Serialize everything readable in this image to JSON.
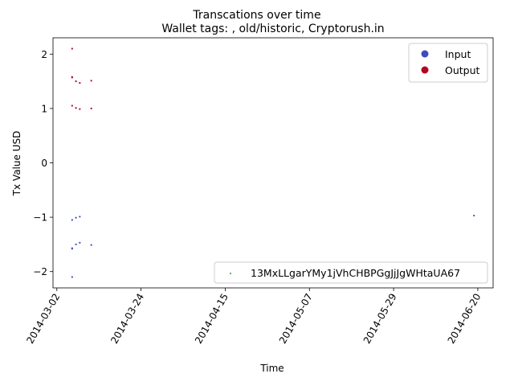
{
  "chart_data": {
    "type": "scatter",
    "title": "Transcations over time",
    "subtitle": "Wallet tags: , old/historic, Cryptorush.in",
    "xlabel": "Time",
    "ylabel": "Tx Value USD",
    "xlim": [
      "2014-03-01",
      "2014-06-24"
    ],
    "ylim": [
      -2.3,
      2.3
    ],
    "x_ticks": [
      "2014-03-02",
      "2014-03-24",
      "2014-04-15",
      "2014-05-07",
      "2014-05-29",
      "2014-06-20"
    ],
    "y_ticks": [
      2,
      1,
      0,
      -1,
      -2
    ],
    "grid": false,
    "series": [
      {
        "name": "Input",
        "color": "#3b4cc0",
        "points": [
          {
            "x": "2014-03-06",
            "y": -1.57
          },
          {
            "x": "2014-03-06",
            "y": -1.58
          },
          {
            "x": "2014-03-06",
            "y": -1.05
          },
          {
            "x": "2014-03-06",
            "y": -2.1
          },
          {
            "x": "2014-03-07",
            "y": -1.5
          },
          {
            "x": "2014-03-07",
            "y": -1.01
          },
          {
            "x": "2014-03-08",
            "y": -1.47
          },
          {
            "x": "2014-03-08",
            "y": -0.99
          },
          {
            "x": "2014-03-11",
            "y": -1.51
          },
          {
            "x": "2014-06-19",
            "y": -0.97
          }
        ]
      },
      {
        "name": "Output",
        "color": "#b40426",
        "points": [
          {
            "x": "2014-03-06",
            "y": 1.57
          },
          {
            "x": "2014-03-06",
            "y": 1.58
          },
          {
            "x": "2014-03-06",
            "y": 1.05
          },
          {
            "x": "2014-03-06",
            "y": 2.1
          },
          {
            "x": "2014-03-07",
            "y": 1.5
          },
          {
            "x": "2014-03-07",
            "y": 1.01
          },
          {
            "x": "2014-03-08",
            "y": 1.47
          },
          {
            "x": "2014-03-08",
            "y": 0.99
          },
          {
            "x": "2014-03-11",
            "y": 1.51
          },
          {
            "x": "2014-03-11",
            "y": 1.0
          }
        ]
      }
    ],
    "legends": [
      {
        "placement": "upper-right",
        "entries": [
          {
            "label": "Input",
            "color": "#3b4cc0",
            "marker": "circle"
          },
          {
            "label": "Output",
            "color": "#b40426",
            "marker": "circle"
          }
        ]
      },
      {
        "placement": "lower-right",
        "entries": [
          {
            "label": "13MxLLgarYMy1jVhCHBPGgJjJgWHtaUA67",
            "color": "#2ca02c",
            "marker": "point"
          }
        ]
      }
    ]
  }
}
